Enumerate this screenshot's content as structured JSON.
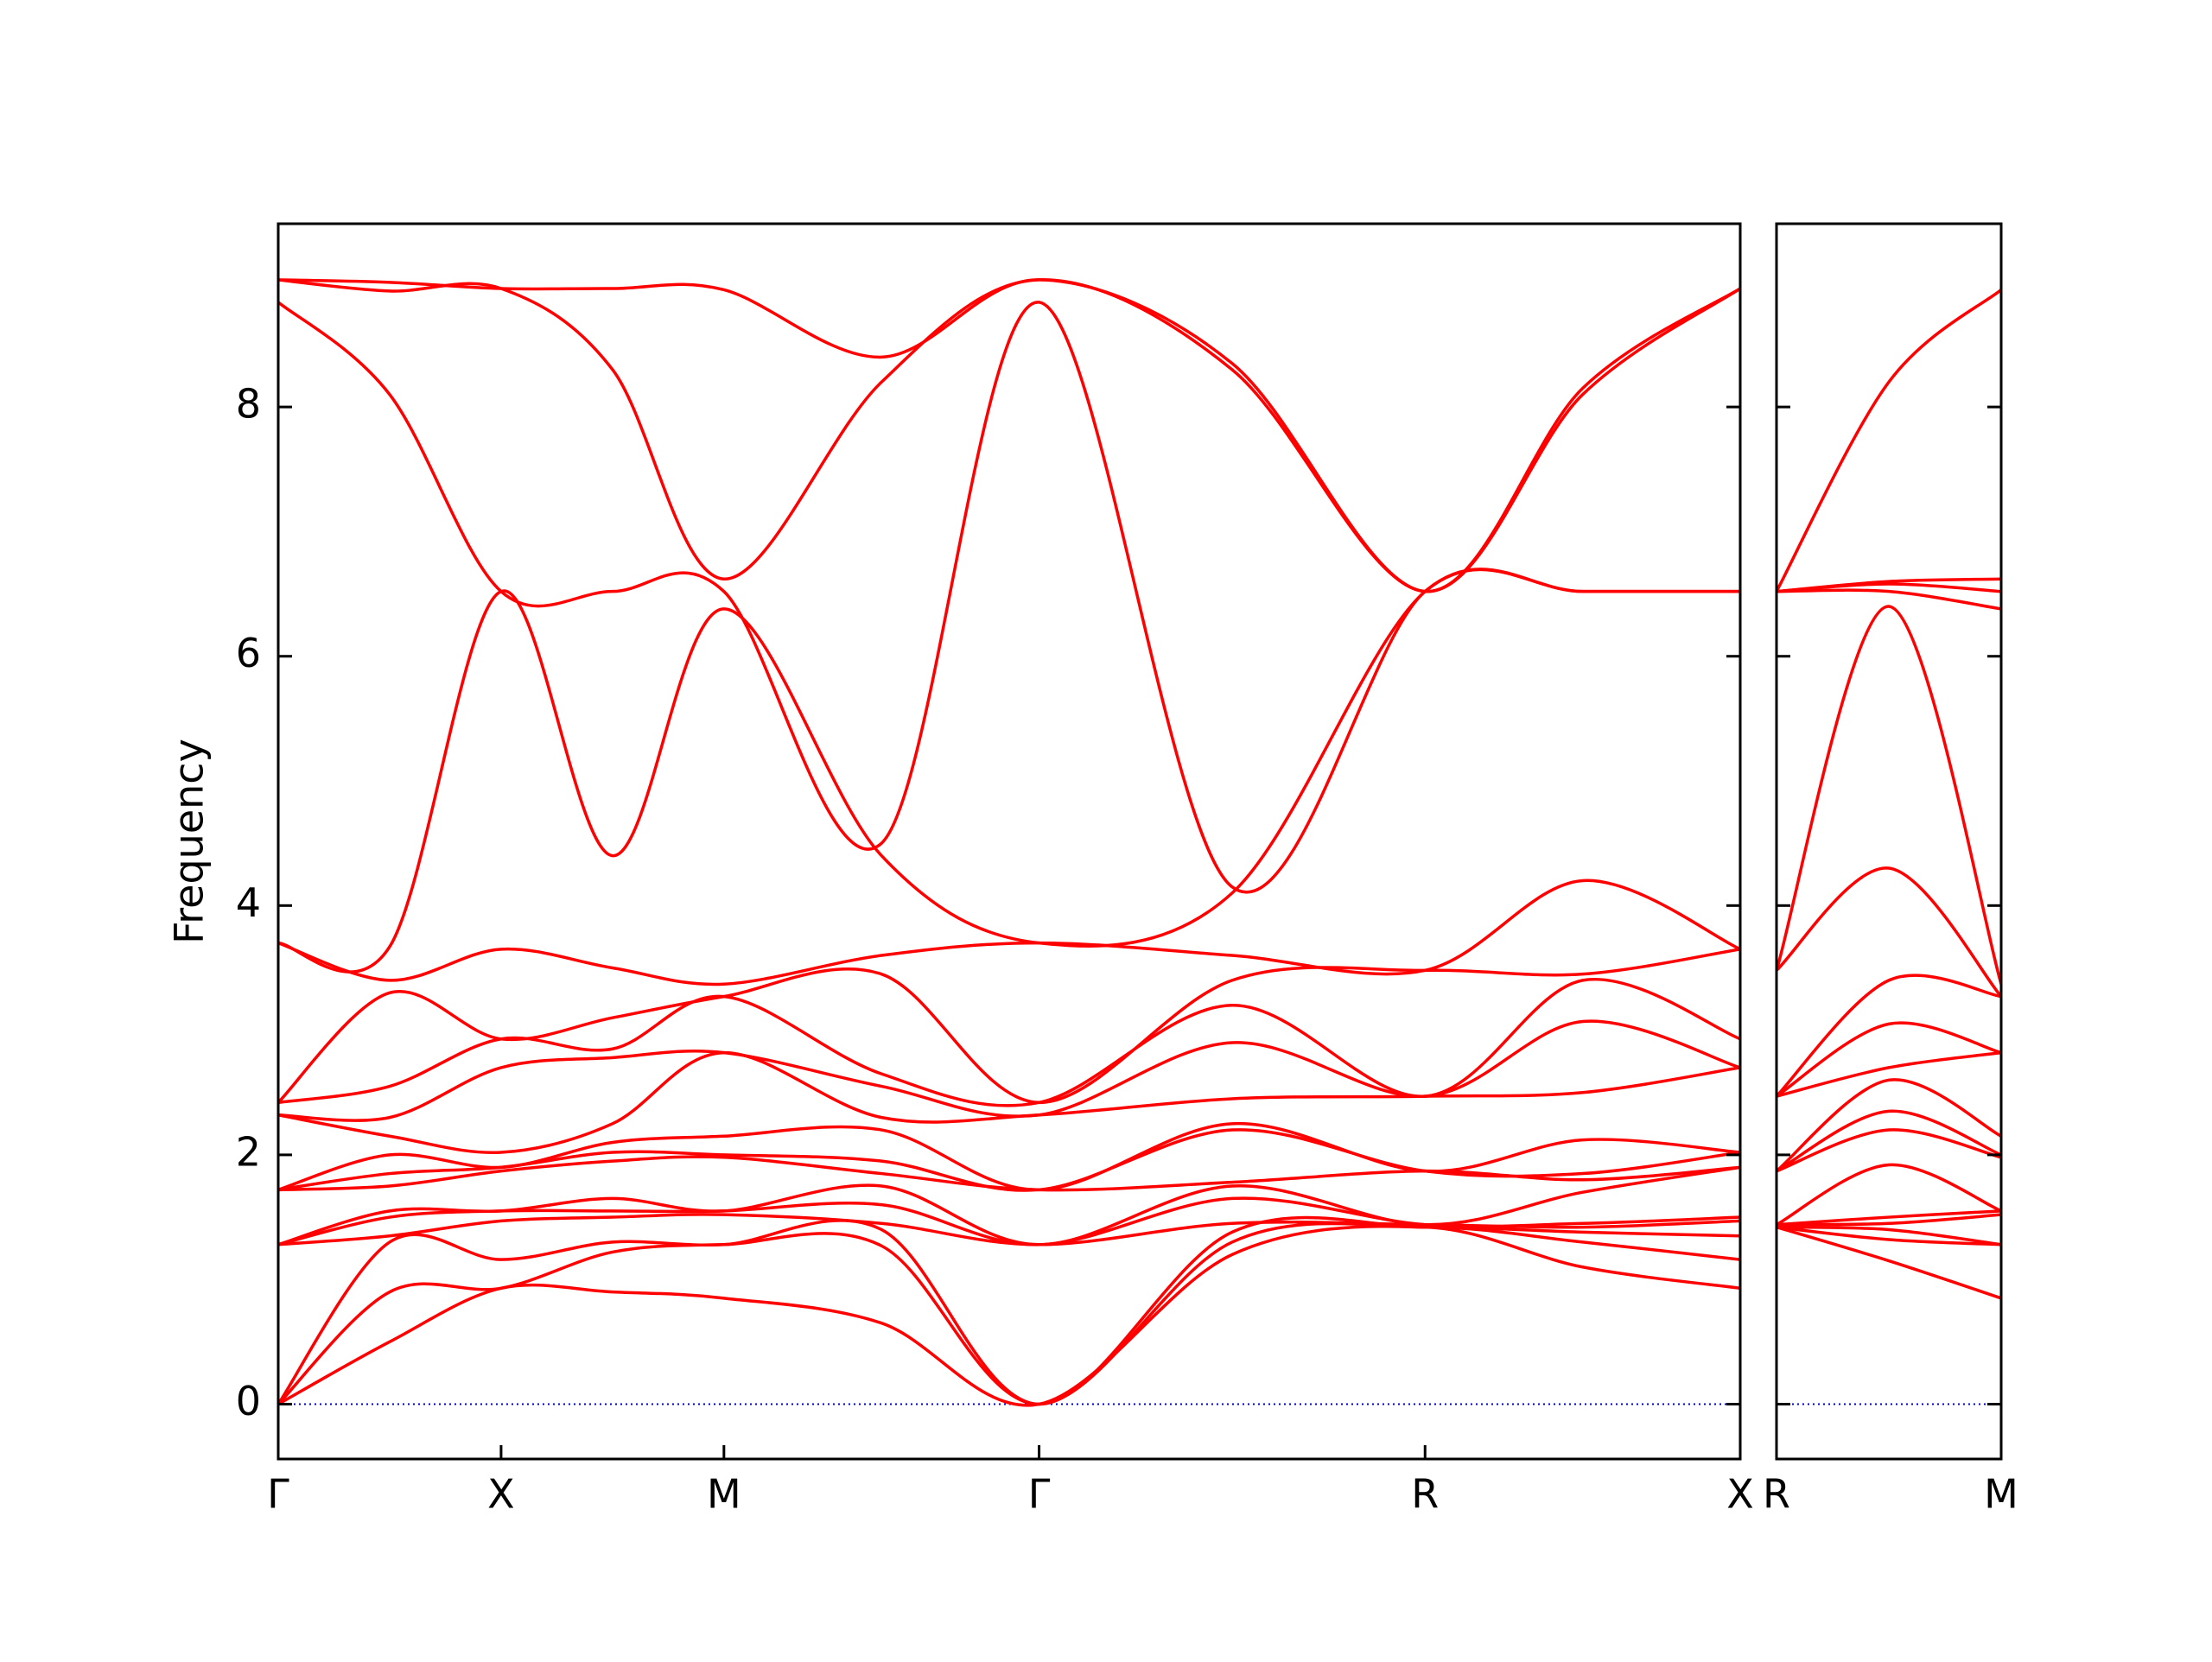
{
  "chart_data": [
    {
      "type": "line",
      "y_label": "Frequency",
      "color": "#ff0000",
      "zero_line": {
        "value": 0,
        "color": "#0000cc"
      },
      "xlim": [
        0,
        3.2802
      ],
      "ylim": [
        -0.44,
        9.47
      ],
      "yticks": [
        0,
        2,
        4,
        6,
        8
      ],
      "ytick_labels": true,
      "xticks": [
        {
          "value": 0,
          "label": "Γ"
        },
        {
          "value": 0.5,
          "label": "X"
        },
        {
          "value": 1.0,
          "label": "M"
        },
        {
          "value": 1.7071,
          "label": "Γ"
        },
        {
          "value": 2.5731,
          "label": "R"
        },
        {
          "value": 3.2802,
          "label": "X"
        }
      ],
      "x": [
        0,
        0.25,
        0.5,
        0.75,
        1.0,
        1.3536,
        1.7071,
        2.1401,
        2.5731,
        2.9267,
        3.2802
      ],
      "series": [
        {
          "values": [
            0,
            0.5,
            0.93,
            0.9,
            0.85,
            0.65,
            0,
            1.2,
            1.42,
            1.1,
            0.93
          ]
        },
        {
          "values": [
            0,
            0.9,
            0.93,
            1.22,
            1.28,
            1.27,
            0,
            1.3,
            1.42,
            1.3,
            1.16
          ]
        },
        {
          "values": [
            0,
            1.3,
            1.16,
            1.3,
            1.28,
            1.4,
            0,
            1.38,
            1.42,
            1.38,
            1.35
          ]
        },
        {
          "values": [
            1.28,
            1.35,
            1.47,
            1.5,
            1.52,
            1.45,
            1.28,
            1.45,
            1.44,
            1.42,
            1.47
          ]
        },
        {
          "values": [
            1.28,
            1.5,
            1.55,
            1.55,
            1.55,
            1.6,
            1.28,
            1.65,
            1.44,
            1.45,
            1.5
          ]
        },
        {
          "values": [
            1.28,
            1.55,
            1.55,
            1.65,
            1.55,
            1.75,
            1.28,
            1.75,
            1.44,
            1.7,
            1.9
          ]
        },
        {
          "values": [
            1.72,
            1.75,
            1.87,
            1.95,
            1.98,
            1.85,
            1.72,
            1.78,
            1.87,
            1.8,
            1.9
          ]
        },
        {
          "values": [
            1.72,
            1.85,
            1.9,
            2.02,
            2.0,
            1.95,
            1.72,
            2.2,
            1.87,
            1.85,
            2.02
          ]
        },
        {
          "values": [
            1.72,
            2.0,
            1.9,
            2.1,
            2.15,
            2.2,
            1.72,
            2.25,
            1.87,
            2.12,
            2.02
          ]
        },
        {
          "values": [
            2.32,
            2.15,
            2.02,
            2.25,
            2.82,
            2.3,
            2.32,
            2.45,
            2.47,
            2.5,
            2.7
          ]
        },
        {
          "values": [
            2.32,
            2.3,
            2.7,
            2.78,
            2.82,
            2.55,
            2.32,
            2.9,
            2.47,
            3.07,
            2.7
          ]
        },
        {
          "values": [
            2.42,
            2.55,
            2.93,
            2.85,
            3.27,
            2.65,
            2.42,
            3.2,
            2.47,
            3.4,
            2.93
          ]
        },
        {
          "values": [
            2.42,
            3.3,
            2.93,
            3.1,
            3.27,
            3.45,
            2.42,
            3.4,
            3.48,
            3.45,
            3.65
          ]
        },
        {
          "values": [
            3.7,
            3.4,
            3.65,
            3.5,
            3.37,
            3.6,
            3.7,
            3.6,
            3.48,
            4.2,
            3.65
          ]
        },
        {
          "values": [
            3.7,
            3.67,
            6.52,
            4.4,
            6.38,
            4.4,
            3.7,
            4.1,
            6.52,
            6.52,
            6.52
          ]
        },
        {
          "values": [
            8.84,
            8.1,
            6.52,
            6.52,
            6.52,
            4.5,
            8.84,
            4.15,
            6.52,
            6.52,
            6.52
          ]
        },
        {
          "values": [
            9.02,
            8.93,
            8.95,
            8.3,
            6.62,
            8.2,
            9.02,
            8.3,
            6.52,
            8.1,
            8.95
          ]
        },
        {
          "values": [
            9.02,
            9.0,
            8.95,
            8.95,
            8.94,
            8.4,
            9.02,
            8.35,
            6.52,
            8.15,
            8.95
          ]
        }
      ]
    },
    {
      "type": "line",
      "color": "#ff0000",
      "zero_line": {
        "value": 0,
        "color": "#0000cc"
      },
      "xlim": [
        0,
        0.5
      ],
      "ylim": [
        -0.44,
        9.47
      ],
      "yticks": [
        0,
        2,
        4,
        6,
        8
      ],
      "ytick_labels": false,
      "xticks": [
        {
          "value": 0,
          "label": "R"
        },
        {
          "value": 0.5,
          "label": "M"
        }
      ],
      "x": [
        0,
        0.25,
        0.5
      ],
      "series": [
        {
          "values": [
            1.42,
            1.15,
            0.85
          ]
        },
        {
          "values": [
            1.42,
            1.32,
            1.28
          ]
        },
        {
          "values": [
            1.42,
            1.4,
            1.28
          ]
        },
        {
          "values": [
            1.44,
            1.45,
            1.52
          ]
        },
        {
          "values": [
            1.44,
            1.5,
            1.55
          ]
        },
        {
          "values": [
            1.44,
            1.92,
            1.55
          ]
        },
        {
          "values": [
            1.87,
            2.2,
            1.98
          ]
        },
        {
          "values": [
            1.87,
            2.35,
            2.0
          ]
        },
        {
          "values": [
            1.87,
            2.6,
            2.15
          ]
        },
        {
          "values": [
            2.47,
            2.7,
            2.82
          ]
        },
        {
          "values": [
            2.47,
            3.05,
            2.82
          ]
        },
        {
          "values": [
            2.47,
            3.4,
            3.27
          ]
        },
        {
          "values": [
            3.48,
            4.3,
            3.27
          ]
        },
        {
          "values": [
            3.48,
            6.4,
            3.37
          ]
        },
        {
          "values": [
            6.52,
            6.52,
            6.38
          ]
        },
        {
          "values": [
            6.52,
            6.58,
            6.52
          ]
        },
        {
          "values": [
            6.52,
            6.6,
            6.62
          ]
        },
        {
          "values": [
            6.52,
            8.2,
            8.94
          ]
        }
      ]
    }
  ]
}
